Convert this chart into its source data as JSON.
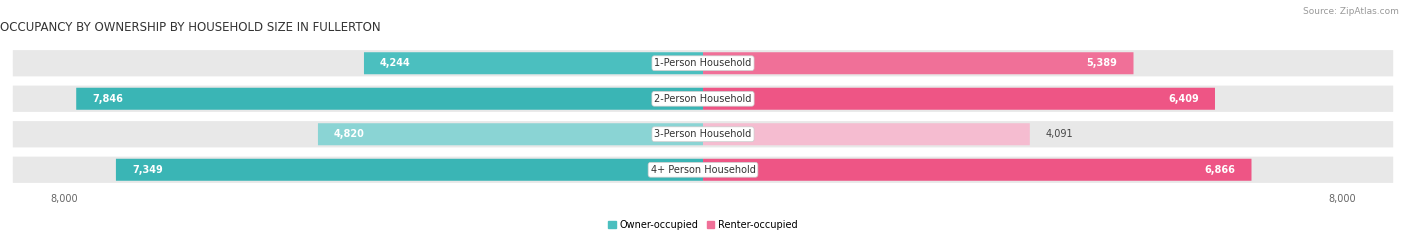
{
  "title": "OCCUPANCY BY OWNERSHIP BY HOUSEHOLD SIZE IN FULLERTON",
  "source": "Source: ZipAtlas.com",
  "categories": [
    "1-Person Household",
    "2-Person Household",
    "3-Person Household",
    "4+ Person Household"
  ],
  "owner_values": [
    4244,
    7846,
    4820,
    7349
  ],
  "renter_values": [
    5389,
    6409,
    4091,
    6866
  ],
  "max_scale": 8000,
  "owner_color_full": "#4bbfbf",
  "owner_color_light": "#8ad4d4",
  "renter_color_full": "#f07098",
  "renter_color_light": "#f5aec5",
  "row_bg_color": "#e8e8e8",
  "background_color": "#ffffff",
  "title_fontsize": 8.5,
  "source_fontsize": 6.5,
  "value_fontsize": 7,
  "cat_fontsize": 7,
  "axis_fontsize": 7,
  "bar_height": 0.62,
  "owner_label": "Owner-occupied",
  "renter_label": "Renter-occupied",
  "axis_tick_label": "8,000",
  "owner_colors_by_row": [
    "#4bbfbf",
    "#3ab5b5",
    "#8ad4d4",
    "#3ab5b5"
  ],
  "renter_colors_by_row": [
    "#f07098",
    "#ee5585",
    "#f5bcd0",
    "#ee5585"
  ]
}
